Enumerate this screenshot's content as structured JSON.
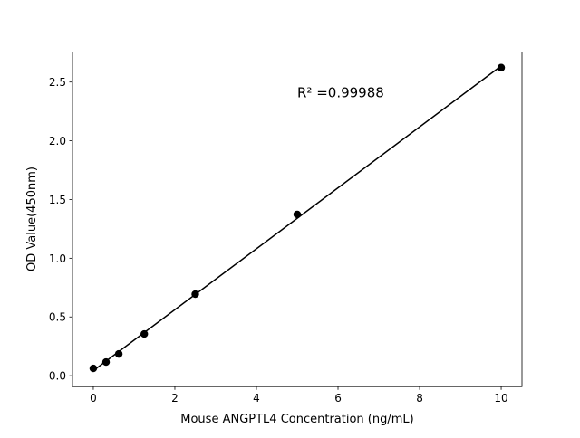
{
  "chart_data": {
    "type": "scatter",
    "title": "",
    "xlabel": "Mouse ANGPTL4 Concentration (ng/mL)",
    "ylabel": "OD Value(450nm)",
    "xlim": [
      -0.51,
      10.51
    ],
    "ylim": [
      -0.093,
      2.755
    ],
    "xticks": [
      0,
      2,
      4,
      6,
      8,
      10
    ],
    "yticks": [
      0.0,
      0.5,
      1.0,
      1.5,
      2.0,
      2.5
    ],
    "xtick_labels": [
      "0",
      "2",
      "4",
      "6",
      "8",
      "10"
    ],
    "ytick_labels": [
      "0.0",
      "0.5",
      "1.0",
      "1.5",
      "2.0",
      "2.5"
    ],
    "grid": false,
    "series": [
      {
        "x": [
          0,
          0.3125,
          0.625,
          1.25,
          2.5,
          5,
          10
        ],
        "y": [
          0.062,
          0.116,
          0.185,
          0.355,
          0.694,
          1.373,
          2.623
        ],
        "color": "#000000",
        "marker": "circle",
        "fit": "linear"
      }
    ],
    "annotation": {
      "text": "R² =0.99988",
      "x": 5,
      "y": 2.37
    }
  }
}
